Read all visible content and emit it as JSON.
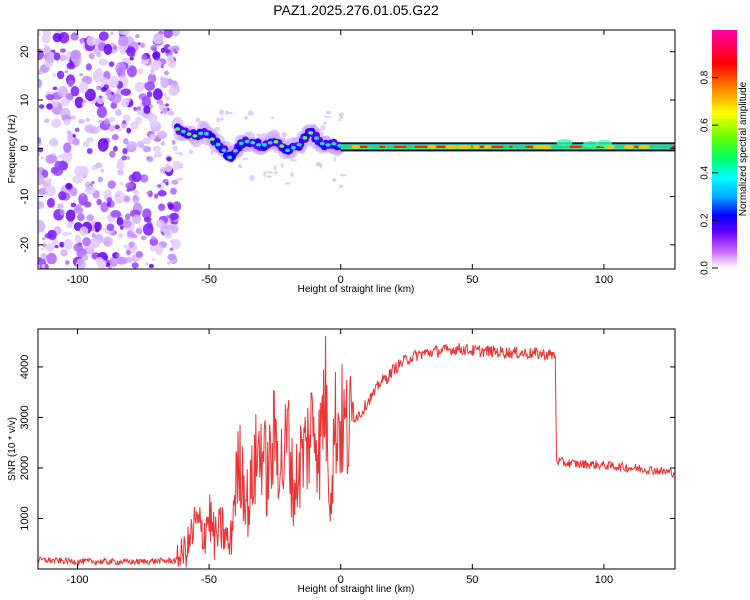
{
  "figure": {
    "title": "PAZ1.2025.276.01.05.G22"
  },
  "chart_data": [
    {
      "type": "heatmap",
      "xlabel": "Height of straight line (km)",
      "ylabel": "Frequency (Hz)",
      "xlim": [
        -115,
        127
      ],
      "ylim": [
        -25,
        24.5
      ],
      "xticks": [
        -100,
        -50,
        0,
        50,
        100
      ],
      "yticks": [
        -20,
        -10,
        0,
        10,
        20
      ],
      "xtick_labels": [
        "-100",
        "-50",
        "0",
        "50",
        "100"
      ],
      "ytick_labels": [
        "-20",
        "-10",
        "0",
        "10",
        "20"
      ],
      "noise_region_km": [
        -115,
        -62
      ],
      "carrier_track": {
        "x_km": [
          -62,
          -58,
          -55,
          -52,
          -48,
          -45,
          -42,
          -38,
          -35,
          -30,
          -25,
          -20,
          -15,
          -12,
          -9,
          -6,
          -3,
          0,
          20,
          40,
          60,
          80,
          90,
          100,
          110,
          127
        ],
        "freq_hz": [
          4,
          3,
          2.5,
          3.5,
          1.5,
          0,
          -2,
          1,
          1.5,
          0.5,
          1.5,
          -0.5,
          1,
          3.5,
          2,
          0.5,
          1,
          0.5,
          0.3,
          0.3,
          0.3,
          0.3,
          0.5,
          0.8,
          0.4,
          0.3
        ]
      },
      "colorbar": {
        "label": "Normalized spectral amplitude",
        "range": [
          0,
          1
        ],
        "ticks": [
          0,
          0.2,
          0.4,
          0.6,
          0.8
        ],
        "tick_labels": [
          "0.0",
          "0.2",
          "0.4",
          "0.6",
          "0.8"
        ],
        "colors": [
          "#ffffff",
          "#cc66ff",
          "#6600ff",
          "#0000ff",
          "#00aaff",
          "#00ffff",
          "#00ff66",
          "#66ff00",
          "#ffff00",
          "#ff8800",
          "#ff0000",
          "#ff00aa"
        ]
      }
    },
    {
      "type": "line",
      "xlabel": "Height of straight line (km)",
      "ylabel": "SNR (10 * v/v)",
      "xlim": [
        -115,
        127
      ],
      "ylim": [
        0,
        4750
      ],
      "xticks": [
        -100,
        -50,
        0,
        50,
        100
      ],
      "yticks": [
        1000,
        2000,
        3000,
        4000
      ],
      "xtick_labels": [
        "-100",
        "-50",
        "0",
        "50",
        "100"
      ],
      "ytick_labels": [
        "1000",
        "2000",
        "3000",
        "4000"
      ],
      "color": "#ee3333",
      "series": [
        {
          "name": "SNR",
          "x": [
            -115,
            -100,
            -80,
            -62,
            -58,
            -55,
            -52,
            -50,
            -48,
            -45,
            -42,
            -40,
            -38,
            -35,
            -33,
            -30,
            -28,
            -25,
            -22,
            -20,
            -18,
            -15,
            -13,
            -10,
            -8,
            -6,
            -5,
            -4,
            -2,
            0,
            3,
            5,
            8,
            10,
            13,
            15,
            18,
            20,
            25,
            30,
            35,
            40,
            45,
            50,
            55,
            60,
            65,
            70,
            75,
            80,
            81.5,
            82,
            85,
            90,
            95,
            100,
            105,
            110,
            115,
            120,
            127
          ],
          "y": [
            180,
            150,
            140,
            170,
            450,
            900,
            700,
            1100,
            600,
            800,
            400,
            1700,
            2100,
            1200,
            2000,
            2500,
            1800,
            2600,
            2000,
            2700,
            1500,
            2200,
            2400,
            3000,
            2300,
            3600,
            2600,
            1500,
            2900,
            2900,
            2700,
            3000,
            3100,
            3300,
            3500,
            3700,
            3800,
            3950,
            4150,
            4250,
            4300,
            4330,
            4360,
            4320,
            4310,
            4300,
            4280,
            4270,
            4260,
            4240,
            4230,
            2150,
            2100,
            2080,
            2070,
            2050,
            2030,
            2000,
            1980,
            1950,
            1900
          ]
        }
      ]
    }
  ]
}
